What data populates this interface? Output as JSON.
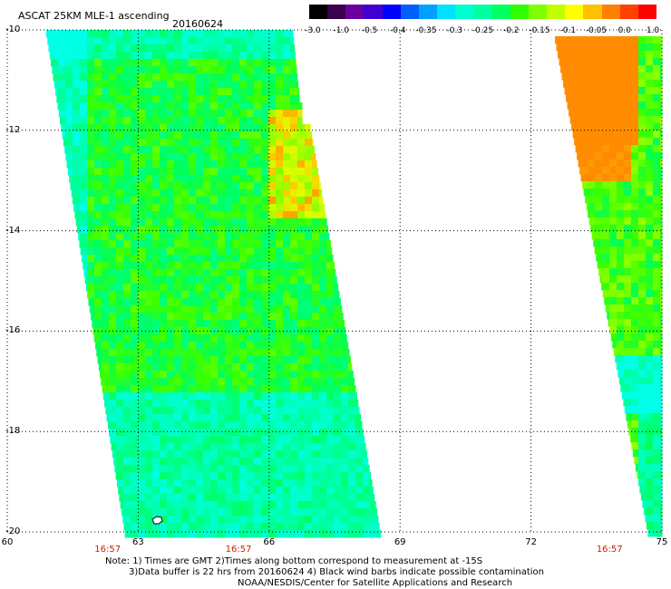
{
  "header": {
    "title": "ASCAT 25KM MLE-1 ascending",
    "date": "20160624"
  },
  "colorbar": {
    "colors": [
      "#000000",
      "#3a0050",
      "#6a00a0",
      "#4000d0",
      "#0000ff",
      "#0060ff",
      "#00a0ff",
      "#00e0ff",
      "#00ffd0",
      "#00ffa0",
      "#00ff60",
      "#30ff00",
      "#80ff00",
      "#c0ff00",
      "#ffff00",
      "#ffc000",
      "#ff8000",
      "#ff4000",
      "#ff0000"
    ],
    "labels": [
      "-3.0",
      "-1.0",
      "-0.5",
      "-0.4",
      "-0.35",
      "-0.3",
      "-0.25",
      "-0.2",
      "-0.15",
      "-0.1",
      "-0.05",
      "0.0",
      "1.0"
    ]
  },
  "axes": {
    "lat_labels": [
      "-10",
      "-12",
      "-14",
      "-16",
      "-18",
      "-20"
    ],
    "lat_values": [
      -10,
      -12,
      -14,
      -16,
      -18,
      -20
    ],
    "lon_labels": [
      "60",
      "63",
      "66",
      "69",
      "72",
      "75"
    ],
    "lon_values": [
      60,
      63,
      66,
      69,
      72,
      75
    ],
    "xlim": [
      60,
      75
    ],
    "ylim": [
      -20,
      -10
    ]
  },
  "times": [
    {
      "label": "16:57",
      "lon": 62.3
    },
    {
      "label": "16:57",
      "lon": 65.3
    },
    {
      "label": "16:57",
      "lon": 73.8
    }
  ],
  "notes": {
    "line1": "Note: 1) Times are GMT 2)Times along bottom correspond to measurement at -15S",
    "line2": "3)Data buffer is 22 hrs from 20160624 4) Black wind barbs indicate possible contamination",
    "line3": "NOAA/NESDIS/Center for Satellite Applications and Research"
  },
  "swaths": [
    {
      "name": "west-swath",
      "dominant": "green",
      "range": "-0.25 to -0.05"
    },
    {
      "name": "east-swath",
      "dominant": "orange-to-cyan",
      "range": "-0.3 to 0.0"
    }
  ]
}
